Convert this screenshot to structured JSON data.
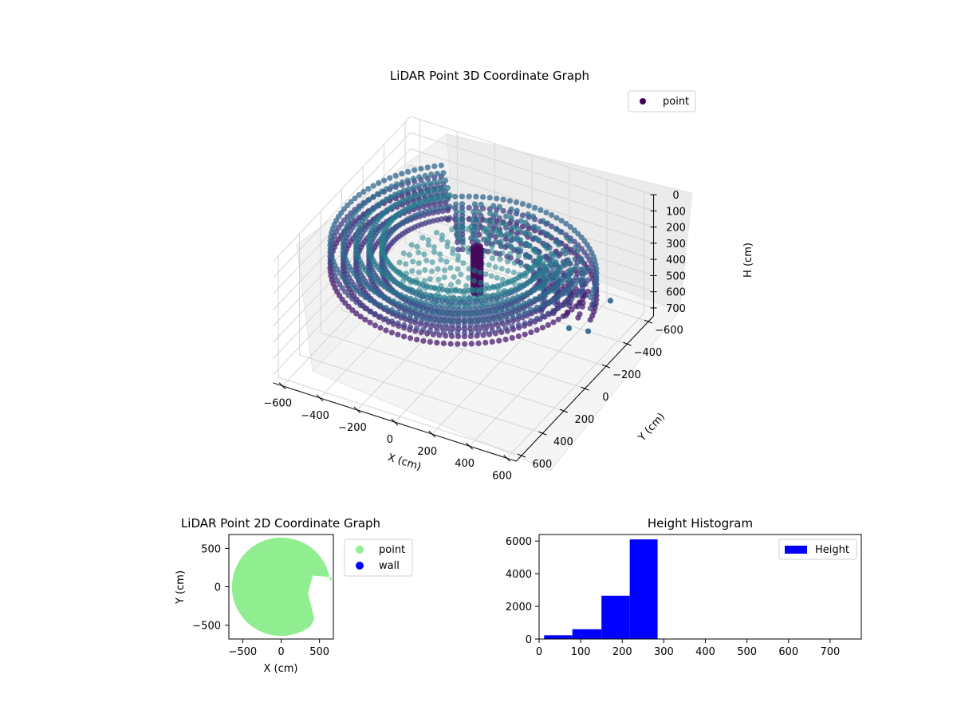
{
  "chart_data": [
    {
      "type": "scatter",
      "projection": "3d",
      "title": "LiDAR Point 3D Coordinate Graph",
      "xlabel": "X (cm)",
      "ylabel": "Y (cm)",
      "zlabel": "H (cm)",
      "xticks": [
        "−600",
        "−400",
        "−200",
        "0",
        "200",
        "400",
        "600"
      ],
      "yticks": [
        "600",
        "400",
        "200",
        "0",
        "−200",
        "−400",
        "−600"
      ],
      "zticks": [
        "0",
        "100",
        "200",
        "300",
        "400",
        "500",
        "600",
        "700"
      ],
      "xlim": [
        -650,
        650
      ],
      "ylim": [
        -650,
        650
      ],
      "zlim": [
        0,
        750
      ],
      "z_axis_inverted": true,
      "grid": true,
      "colormap": "viridis",
      "legend": {
        "placement": "top-right",
        "entries": [
          {
            "name": "point",
            "color": "#440154"
          }
        ]
      },
      "series": [
        {
          "name": "point",
          "rings_radius_cm": [
            620,
            560,
            500,
            440,
            380
          ],
          "ring_height_cm": 230,
          "floor_disk_radius_cm": 300,
          "outliers": [
            {
              "x": 520,
              "y": -80,
              "h": 480
            },
            {
              "x": 560,
              "y": -190,
              "h": 560
            },
            {
              "x": 430,
              "y": -470,
              "h": 640
            },
            {
              "x": 470,
              "y": -560,
              "h": 660
            },
            {
              "x": 150,
              "y": -400,
              "h": 520
            },
            {
              "x": 220,
              "y": -460,
              "h": 540
            }
          ]
        }
      ]
    },
    {
      "type": "scatter",
      "title": "LiDAR Point 2D Coordinate Graph",
      "xlabel": "X (cm)",
      "ylabel": "Y (cm)",
      "xticks": [
        "−500",
        "0",
        "500"
      ],
      "yticks": [
        "500",
        "0",
        "−500"
      ],
      "xlim": [
        -680,
        680
      ],
      "ylim": [
        -680,
        680
      ],
      "grid": false,
      "legend": {
        "placement": "outside-right",
        "entries": [
          {
            "name": "point",
            "color": "#90ee90"
          },
          {
            "name": "wall",
            "color": "#0000ff"
          }
        ]
      },
      "series": [
        {
          "name": "point",
          "color": "#90ee90",
          "shape": "disc",
          "radius_cm": 640,
          "notch": "right"
        },
        {
          "name": "wall",
          "color": "#0000ff",
          "values": []
        }
      ]
    },
    {
      "type": "bar",
      "subtype": "histogram",
      "title": "Height Histogram",
      "xticks": [
        "0",
        "100",
        "200",
        "300",
        "400",
        "500",
        "600",
        "700"
      ],
      "yticks": [
        "0",
        "2000",
        "4000",
        "6000"
      ],
      "xlim": [
        0,
        775
      ],
      "ylim": [
        0,
        6400
      ],
      "grid": false,
      "legend": {
        "placement": "top-right",
        "entries": [
          {
            "name": "Height",
            "color": "#0000ff"
          }
        ]
      },
      "bins": [
        {
          "x0": 12,
          "x1": 80,
          "count": 230
        },
        {
          "x0": 80,
          "x1": 150,
          "count": 600
        },
        {
          "x0": 150,
          "x1": 218,
          "count": 2650
        },
        {
          "x0": 218,
          "x1": 285,
          "count": 6100
        },
        {
          "x0": 285,
          "x1": 353,
          "count": 0
        },
        {
          "x0": 353,
          "x1": 421,
          "count": 0
        },
        {
          "x0": 421,
          "x1": 489,
          "count": 0
        },
        {
          "x0": 489,
          "x1": 557,
          "count": 0
        },
        {
          "x0": 557,
          "x1": 625,
          "count": 0
        },
        {
          "x0": 625,
          "x1": 693,
          "count": 0
        },
        {
          "x0": 693,
          "x1": 761,
          "count": 0
        }
      ],
      "color": "#0000ff"
    }
  ]
}
